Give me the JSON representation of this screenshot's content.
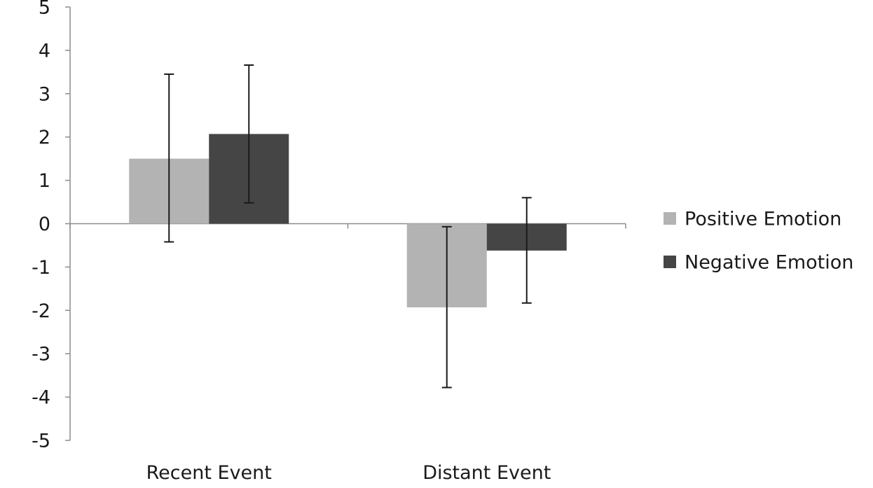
{
  "chart_data": {
    "type": "bar",
    "categories": [
      "Recent Event",
      "Distant Event"
    ],
    "series": [
      {
        "name": "Positive Emotion",
        "color": "#b3b3b3",
        "values": [
          1.5,
          -1.93
        ],
        "error_low": [
          -0.42,
          -3.78
        ],
        "error_high": [
          3.45,
          -0.07
        ]
      },
      {
        "name": "Negative Emotion",
        "color": "#454545",
        "values": [
          2.07,
          -0.62
        ],
        "error_low": [
          0.48,
          -1.83
        ],
        "error_high": [
          3.66,
          0.6
        ]
      }
    ],
    "ylim": [
      -5,
      5
    ],
    "yticks": [
      "5",
      "4",
      "3",
      "2",
      "1",
      "0",
      "-1",
      "-2",
      "-3",
      "-4",
      "-5"
    ],
    "title": "",
    "xlabel": "",
    "ylabel": "",
    "grid": false,
    "legend_position": "right"
  }
}
